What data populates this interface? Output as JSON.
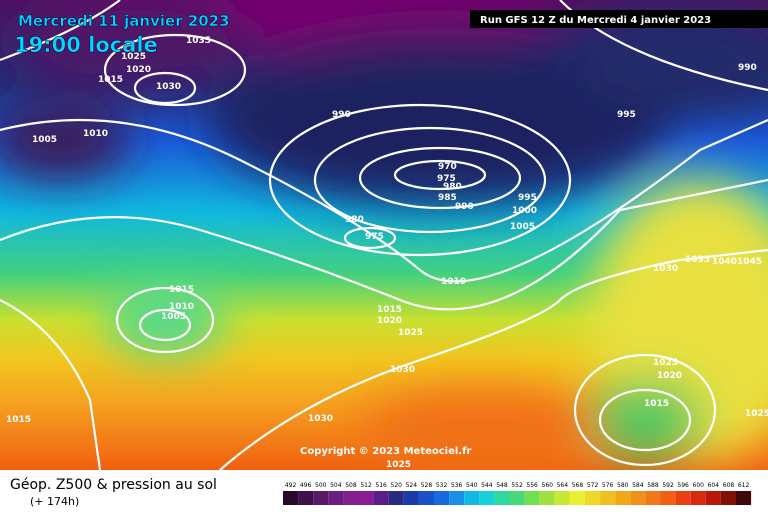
{
  "header": {
    "date": "Mercredi 11 janvier 2023",
    "time": "19:00 locale",
    "run": "Run GFS 12 Z du Mercredi 4 janvier 2023"
  },
  "map": {
    "isobar_labels": [
      1035,
      1025,
      1020,
      1015,
      1030,
      1005,
      1010,
      990,
      970,
      975,
      980,
      985,
      990,
      980,
      975,
      995,
      1000,
      1005,
      1010,
      1015,
      1020,
      1025,
      1030,
      1015,
      1010,
      1005,
      1030,
      1015,
      995,
      990,
      1030,
      1035,
      1040,
      1045,
      1025,
      1020,
      1015,
      1025,
      1025
    ],
    "copyright": "Copyright © 2023 Meteociel.fr"
  },
  "footer": {
    "title": "Géop. Z500 & pression au sol",
    "lead": "(+ 174h)"
  },
  "legend": {
    "values": [
      492,
      496,
      500,
      504,
      508,
      512,
      516,
      520,
      524,
      528,
      532,
      536,
      540,
      544,
      548,
      552,
      556,
      560,
      564,
      568,
      572,
      576,
      580,
      584,
      588,
      592,
      596,
      600,
      604,
      608,
      612
    ],
    "colors": [
      "#2a0a2a",
      "#40104a",
      "#581a66",
      "#6c1e80",
      "#80208c",
      "#8a1c96",
      "#5a1e8a",
      "#2a2a80",
      "#1a3aa8",
      "#1a50c8",
      "#1868e0",
      "#1890e8",
      "#10b8e8",
      "#18d0d8",
      "#30d8a0",
      "#48d878",
      "#70e050",
      "#a0e040",
      "#c8e838",
      "#e8f030",
      "#f0d828",
      "#f0c020",
      "#f0a818",
      "#f09018",
      "#f07818",
      "#f06010",
      "#e84010",
      "#d82810",
      "#b81808",
      "#801008",
      "#400808"
    ]
  }
}
